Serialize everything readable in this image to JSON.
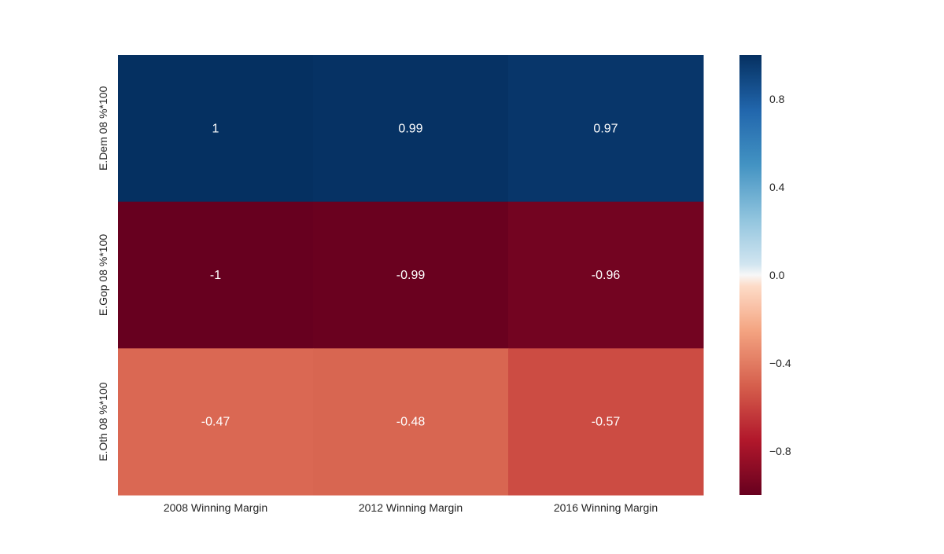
{
  "chart_data": {
    "type": "heatmap",
    "x_labels": [
      "2008 Winning Margin",
      "2012 Winning Margin",
      "2016 Winning Margin"
    ],
    "y_labels": [
      "E.Dem 08 %*100",
      "E.Gop 08 %*100",
      "E.Oth 08 %*100"
    ],
    "values": [
      [
        1,
        0.99,
        0.97
      ],
      [
        -1,
        -0.99,
        -0.96
      ],
      [
        -0.47,
        -0.48,
        -0.57
      ]
    ],
    "cell_labels": [
      [
        "1",
        "0.99",
        "0.97"
      ],
      [
        "-1",
        "-0.99",
        "-0.96"
      ],
      [
        "-0.47",
        "-0.48",
        "-0.57"
      ]
    ],
    "colorbar": {
      "vmin": -1,
      "vmax": 1,
      "ticks": [
        0.8,
        0.4,
        0.0,
        -0.4,
        -0.8
      ],
      "tick_labels": [
        "0.8",
        "0.4",
        "0.0",
        "−0.4",
        "−0.8"
      ],
      "colormap": "RdBu"
    }
  }
}
